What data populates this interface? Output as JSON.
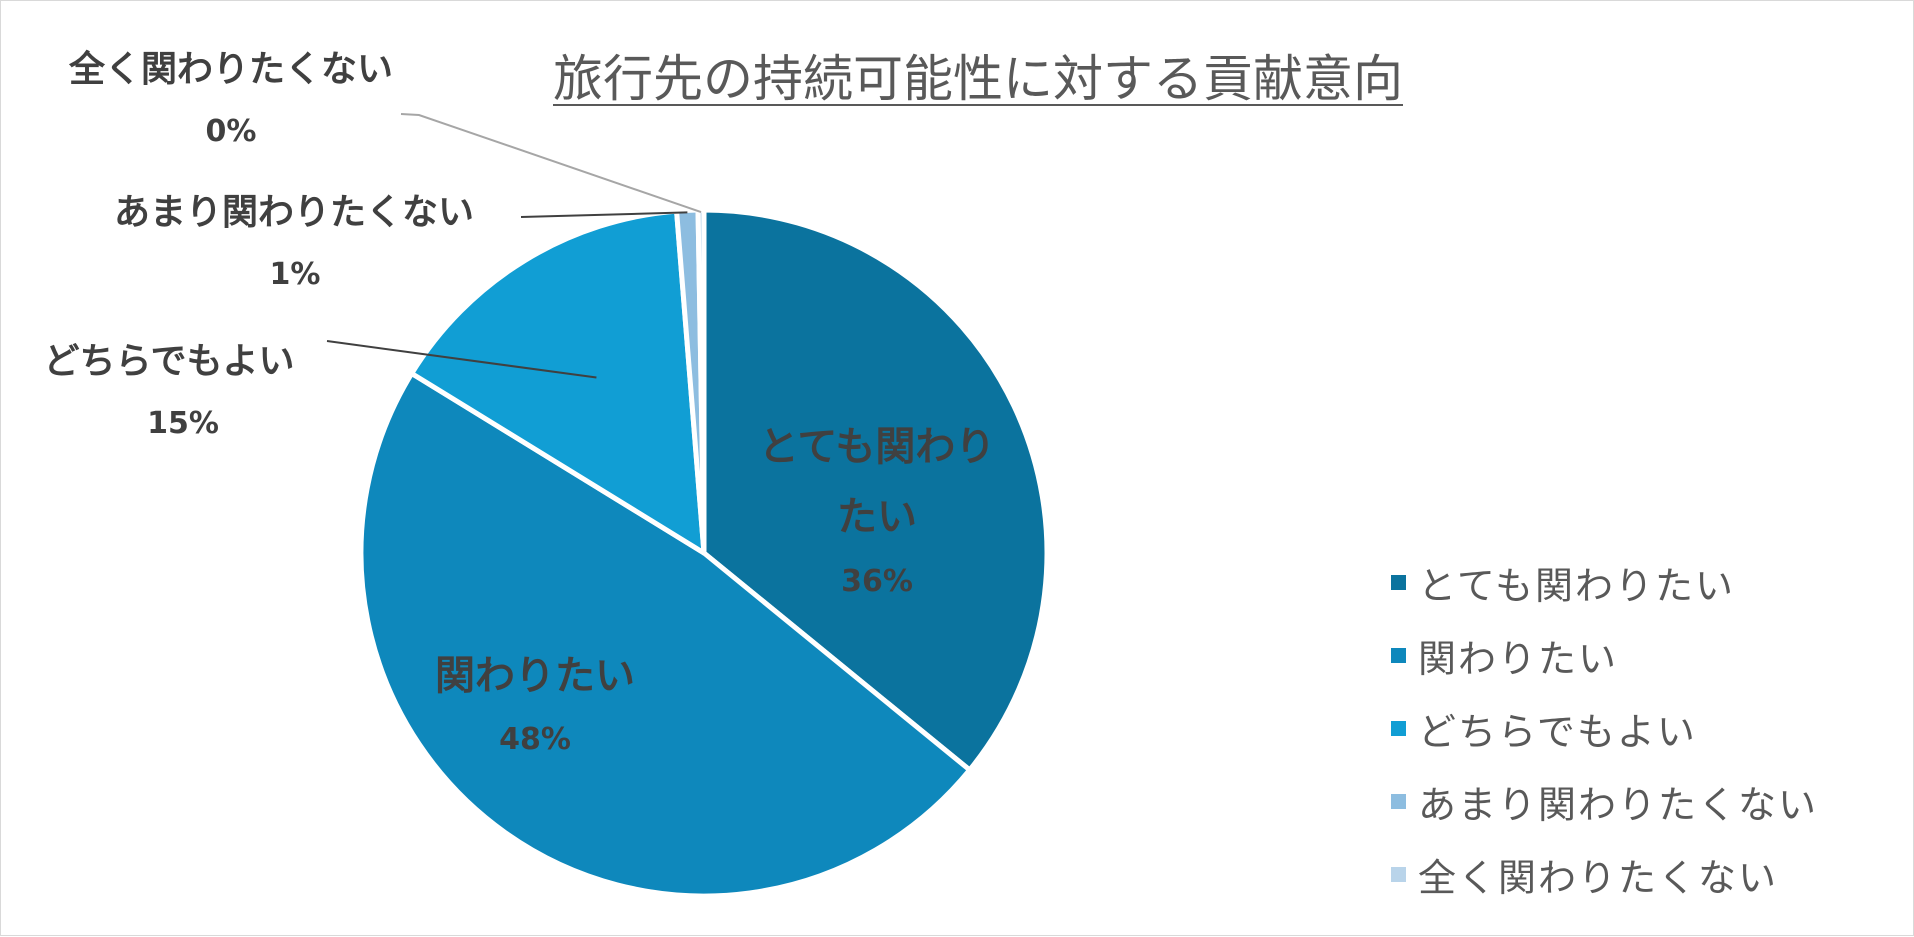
{
  "chart_data": {
    "type": "pie",
    "title": "旅行先の持続可能性に対する貢献意向",
    "categories": [
      "とても関わりたい",
      "関わりたい",
      "どちらでもよい",
      "あまり関わりたくない",
      "全く関わりたくない"
    ],
    "values": [
      36,
      48,
      15,
      1,
      0
    ],
    "value_labels": [
      "36%",
      "48%",
      "15%",
      "1%",
      "0%"
    ],
    "unit": "%",
    "colors": [
      "#0b739e",
      "#0e88bc",
      "#119ed4",
      "#8dbde0",
      "#b9d4ea"
    ],
    "legend_position": "right",
    "inside_label_slices": [
      0,
      1
    ],
    "outside_label_slices": [
      2,
      3,
      4
    ]
  }
}
